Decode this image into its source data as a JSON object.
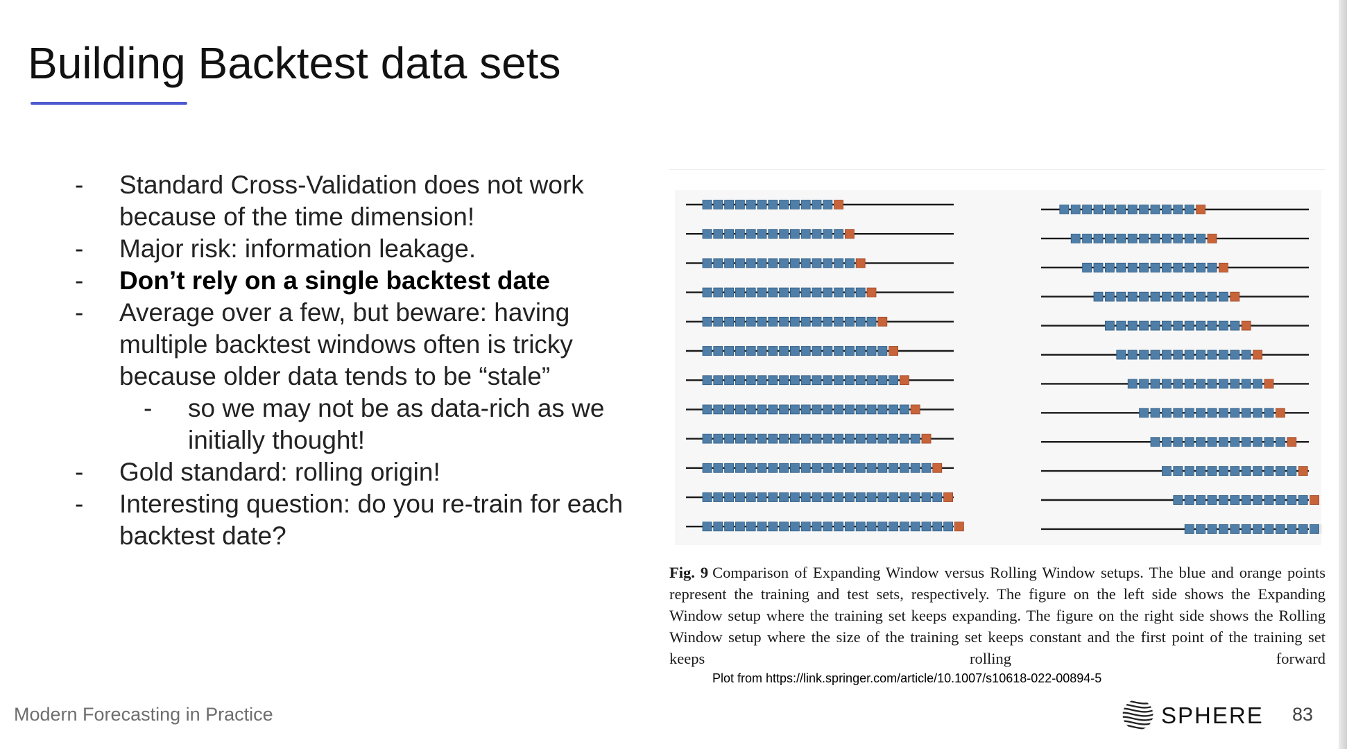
{
  "slide": {
    "title": "Building Backtest data sets",
    "bullets": [
      {
        "level": 1,
        "bold": false,
        "text": "Standard Cross-Validation does not work because of the time dimension!"
      },
      {
        "level": 1,
        "bold": false,
        "text": "Major risk: information leakage."
      },
      {
        "level": 1,
        "bold": true,
        "text": "Don’t rely on a single backtest date"
      },
      {
        "level": 1,
        "bold": false,
        "text": "Average over a few, but beware: having multiple backtest windows often is tricky because older data tends to be “stale”"
      },
      {
        "level": 2,
        "bold": false,
        "text": "so we may not be as data-rich as we initially thought!"
      },
      {
        "level": 1,
        "bold": false,
        "text": "Gold standard: rolling origin!"
      },
      {
        "level": 1,
        "bold": false,
        "text": "Interesting question: do you re-train for each backtest date?"
      }
    ],
    "bullet_marker": "-"
  },
  "figure": {
    "caption_label": "Fig. 9",
    "caption_text": "Comparison of Expanding Window versus Rolling Window setups. The blue and orange points represent the training and test sets, respectively. The figure on the left side shows the Expanding Window setup where the training set keeps expanding. The figure on the right side shows the Rolling Window setup where the size of the training set keeps constant and the first point of the training set keeps rolling forward",
    "source_note": "Plot from https://link.springer.com/article/10.1007/s10618-022-00894-5",
    "colors": {
      "train": "#4f7fa8",
      "test": "#c8643a",
      "timeline": "#1a1a1a"
    },
    "expanding_window_rows": [
      {
        "train_points": 12,
        "test_points": 1
      },
      {
        "train_points": 13,
        "test_points": 1
      },
      {
        "train_points": 14,
        "test_points": 1
      },
      {
        "train_points": 15,
        "test_points": 1
      },
      {
        "train_points": 16,
        "test_points": 1
      },
      {
        "train_points": 17,
        "test_points": 1
      },
      {
        "train_points": 18,
        "test_points": 1
      },
      {
        "train_points": 19,
        "test_points": 1
      },
      {
        "train_points": 20,
        "test_points": 1
      },
      {
        "train_points": 21,
        "test_points": 1
      },
      {
        "train_points": 22,
        "test_points": 1
      },
      {
        "train_points": 23,
        "test_points": 1
      }
    ],
    "rolling_window_rows": [
      {
        "start_point": 2,
        "train_points": 12,
        "test_points": 1
      },
      {
        "start_point": 3,
        "train_points": 12,
        "test_points": 1
      },
      {
        "start_point": 4,
        "train_points": 12,
        "test_points": 1
      },
      {
        "start_point": 5,
        "train_points": 12,
        "test_points": 1
      },
      {
        "start_point": 6,
        "train_points": 12,
        "test_points": 1
      },
      {
        "start_point": 7,
        "train_points": 12,
        "test_points": 1
      },
      {
        "start_point": 8,
        "train_points": 12,
        "test_points": 1
      },
      {
        "start_point": 9,
        "train_points": 12,
        "test_points": 1
      },
      {
        "start_point": 10,
        "train_points": 12,
        "test_points": 1
      },
      {
        "start_point": 11,
        "train_points": 12,
        "test_points": 1
      },
      {
        "start_point": 12,
        "train_points": 12,
        "test_points": 1
      },
      {
        "start_point": 13,
        "train_points": 12,
        "test_points": 1
      }
    ]
  },
  "footer": {
    "deck_title": "Modern Forecasting in Practice",
    "brand": "SPHERE",
    "page_number": "83"
  }
}
